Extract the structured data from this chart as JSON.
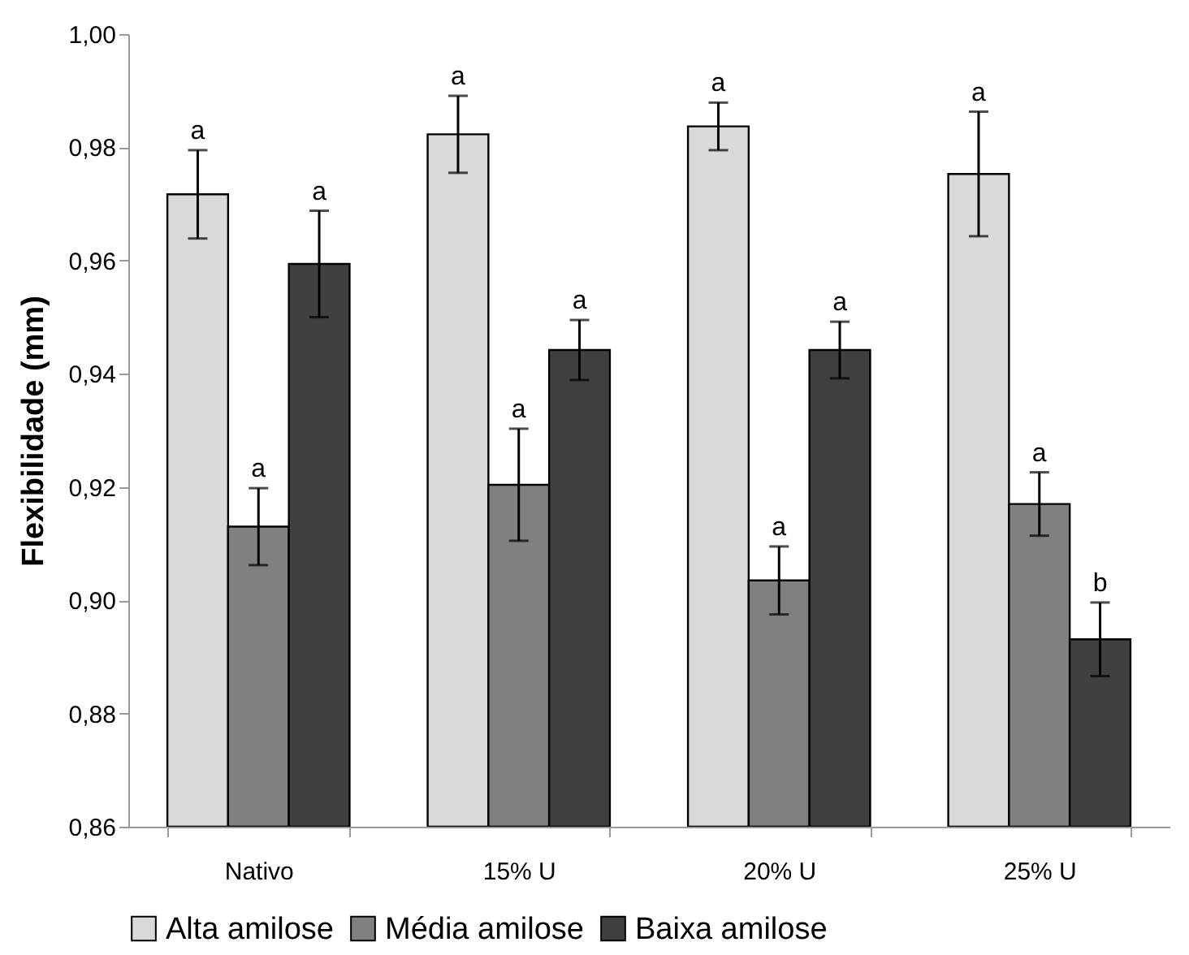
{
  "chart_data": {
    "type": "bar",
    "ylabel": "Flexibilidade (mm)",
    "categories": [
      "Nativo",
      "15% U",
      "20% U",
      "25% U"
    ],
    "series": [
      {
        "name": "Alta amilose",
        "color": "#d9d9d9",
        "values": [
          0.9717,
          0.9823,
          0.9837,
          0.9753
        ],
        "errors": [
          0.0078,
          0.0068,
          0.0042,
          0.011
        ],
        "value_labels": [
          "a",
          "a",
          "a",
          "a"
        ]
      },
      {
        "name": "Média amilose",
        "color": "#808080",
        "values": [
          0.913,
          0.9204,
          0.9035,
          0.917
        ],
        "errors": [
          0.0068,
          0.0099,
          0.006,
          0.0056
        ],
        "value_labels": [
          "a",
          "a",
          "a",
          "a"
        ]
      },
      {
        "name": "Baixa amilose",
        "color": "#404040",
        "values": [
          0.9594,
          0.9442,
          0.9442,
          0.8931
        ],
        "errors": [
          0.0094,
          0.0053,
          0.005,
          0.0065
        ],
        "value_labels": [
          "a",
          "a",
          "a",
          "b"
        ]
      }
    ],
    "ylim": [
      0.86,
      1.0
    ],
    "yticks": [
      {
        "value": 0.86,
        "label": "0,86"
      },
      {
        "value": 0.88,
        "label": "0,88"
      },
      {
        "value": 0.9,
        "label": "0,90"
      },
      {
        "value": 0.92,
        "label": "0,92"
      },
      {
        "value": 0.94,
        "label": "0,94"
      },
      {
        "value": 0.96,
        "label": "0,96"
      },
      {
        "value": 0.98,
        "label": "0,98"
      },
      {
        "value": 1.0,
        "label": "1,00"
      }
    ],
    "grid": false,
    "legend": "bottom"
  }
}
